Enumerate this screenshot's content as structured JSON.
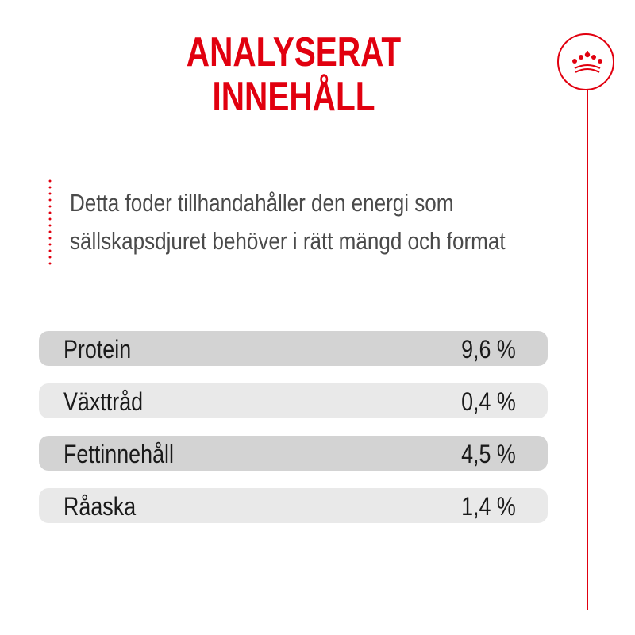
{
  "title": {
    "line1": "ANALYSERAT",
    "line2": "INNEHÅLL"
  },
  "intro": {
    "line1": "Detta foder tillhandahåller den energi som",
    "line2": "sällskapsdjuret behöver i rätt mängd och format"
  },
  "nutrients": [
    {
      "label": "Protein",
      "value": "9,6 %"
    },
    {
      "label": "Växttråd",
      "value": "0,4 %"
    },
    {
      "label": "Fettinnehåll",
      "value": "4,5 %"
    },
    {
      "label": "Råaska",
      "value": "1,4 %"
    }
  ],
  "brand": {
    "icon": "crown-icon",
    "accent_color": "#e1000f"
  },
  "colors": {
    "row_dark": "#d3d3d3",
    "row_light": "#e9e9e9",
    "text": "#1a1a1a",
    "intro_text": "#4a4a4a"
  }
}
